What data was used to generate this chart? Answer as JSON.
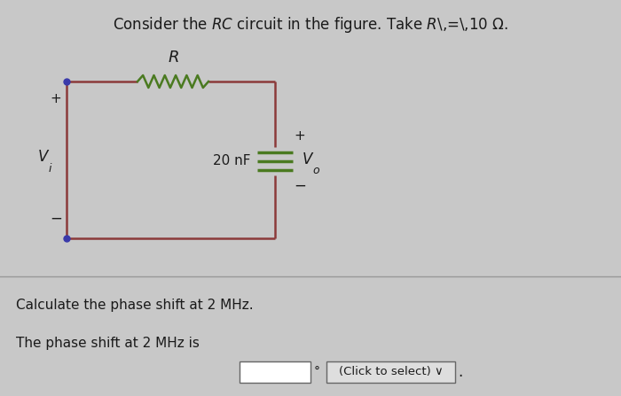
{
  "title_normal": "Consider the ",
  "title_italic": "RC",
  "title_rest": " circuit in the figure. Take ",
  "title_R_italic": "R",
  "title_end": " = 10 Ω.",
  "circuit_color": "#8B3A3A",
  "resistor_color": "#4a7a20",
  "capacitor_color": "#4a7a20",
  "bg_color": "#c8c8c8",
  "text_color": "#1a1a1a",
  "node_color": "#3a3aaa",
  "bottom_text1": "Calculate the phase shift at 2 MHz.",
  "bottom_text2": "The phase shift at 2 MHz is",
  "degree_symbol": "°",
  "dropdown_text": "(Click to select) ∨",
  "label_R": "R",
  "label_Vi": "V",
  "label_Vi_sub": "i",
  "label_Vo": "V",
  "label_Vo_sub": "o",
  "label_C": "20 nF",
  "plus_sign": "+",
  "minus_sign": "−",
  "font_size_title": 12,
  "font_size_labels": 11,
  "font_size_bottom": 11
}
